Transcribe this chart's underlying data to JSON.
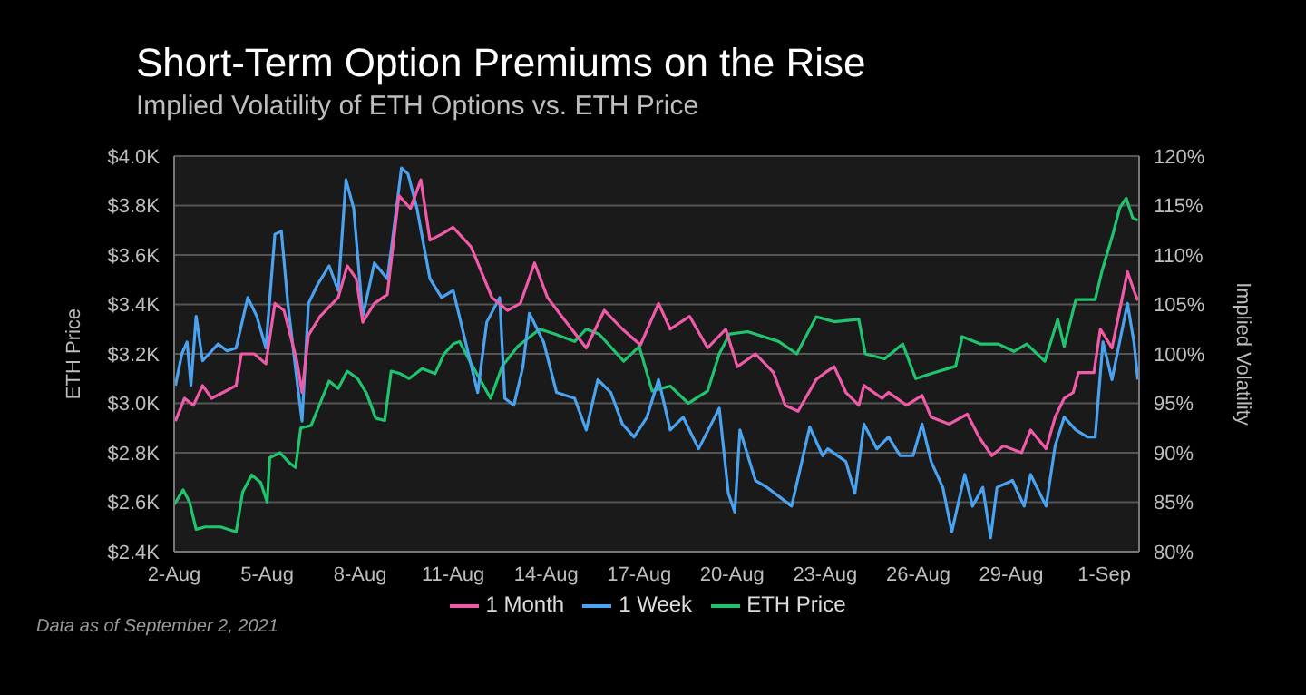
{
  "chart_data": {
    "type": "line",
    "title": "Short-Term Option Premiums on the Rise",
    "subtitle": "Implied Volatility of ETH Options vs. ETH Price",
    "ylabel": "ETH Price",
    "y2label": "Implied Volatility",
    "annotations": [
      "Data as of September 2, 2021"
    ],
    "xlim": [
      "2021-08-02",
      "2021-09-02T03:00"
    ],
    "xticks": [
      {
        "value": "2021-08-02",
        "label": "2-Aug"
      },
      {
        "value": "2021-08-05",
        "label": "5-Aug"
      },
      {
        "value": "2021-08-08",
        "label": "8-Aug"
      },
      {
        "value": "2021-08-11",
        "label": "11-Aug"
      },
      {
        "value": "2021-08-14",
        "label": "14-Aug"
      },
      {
        "value": "2021-08-17",
        "label": "17-Aug"
      },
      {
        "value": "2021-08-20",
        "label": "20-Aug"
      },
      {
        "value": "2021-08-23",
        "label": "23-Aug"
      },
      {
        "value": "2021-08-26",
        "label": "26-Aug"
      },
      {
        "value": "2021-08-29",
        "label": "29-Aug"
      },
      {
        "value": "2021-09-01",
        "label": "1-Sep"
      }
    ],
    "ylim": [
      2400,
      4000
    ],
    "yticks": [
      {
        "value": 2400,
        "label": "$2.4K"
      },
      {
        "value": 2600,
        "label": "$2.6K"
      },
      {
        "value": 2800,
        "label": "$2.8K"
      },
      {
        "value": 3000,
        "label": "$3.0K"
      },
      {
        "value": 3200,
        "label": "$3.2K"
      },
      {
        "value": 3400,
        "label": "$3.4K"
      },
      {
        "value": 3600,
        "label": "$3.6K"
      },
      {
        "value": 3800,
        "label": "$3.8K"
      },
      {
        "value": 4000,
        "label": "$4.0K"
      }
    ],
    "y2lim": [
      80,
      120
    ],
    "y2ticks": [
      {
        "value": 80,
        "label": "80%"
      },
      {
        "value": 85,
        "label": "85%"
      },
      {
        "value": 90,
        "label": "90%"
      },
      {
        "value": 95,
        "label": "95%"
      },
      {
        "value": 100,
        "label": "100%"
      },
      {
        "value": 105,
        "label": "105%"
      },
      {
        "value": 110,
        "label": "110%"
      },
      {
        "value": 115,
        "label": "115%"
      },
      {
        "value": 120,
        "label": "120%"
      }
    ],
    "grid": "y",
    "legend": "bottom",
    "marker": "none",
    "line_style": "solid",
    "series": [
      {
        "name": "ETH Price",
        "color": "#1fc46e",
        "x": [
          "2021-08-02T00:00",
          "2021-08-02T07:00",
          "2021-08-02T12:00",
          "2021-08-02T17:00",
          "2021-08-03T00:00",
          "2021-08-03T12:00",
          "2021-08-04T00:00",
          "2021-08-04T05:00",
          "2021-08-04T12:00",
          "2021-08-04T19:00",
          "2021-08-05T00:00",
          "2021-08-05T02:00",
          "2021-08-05T10:00",
          "2021-08-05T17:00",
          "2021-08-05T22:00",
          "2021-08-06T02:00",
          "2021-08-06T10:00",
          "2021-08-06T17:00",
          "2021-08-07T00:00",
          "2021-08-07T07:00",
          "2021-08-07T14:00",
          "2021-08-07T22:00",
          "2021-08-08T05:00",
          "2021-08-08T12:00",
          "2021-08-08T19:00",
          "2021-08-09T00:00",
          "2021-08-09T07:00",
          "2021-08-09T14:00",
          "2021-08-10T00:00",
          "2021-08-10T10:00",
          "2021-08-10T17:00",
          "2021-08-11T00:00",
          "2021-08-11T05:00",
          "2021-08-11T14:00",
          "2021-08-12T05:00",
          "2021-08-12T14:00",
          "2021-08-13T02:00",
          "2021-08-13T19:00",
          "2021-08-14T07:00",
          "2021-08-14T22:00",
          "2021-08-15T07:00",
          "2021-08-15T17:00",
          "2021-08-16T12:00",
          "2021-08-17T00:00",
          "2021-08-17T10:00",
          "2021-08-18T00:00",
          "2021-08-18T14:00",
          "2021-08-19T05:00",
          "2021-08-19T14:00",
          "2021-08-19T22:00",
          "2021-08-20T12:00",
          "2021-08-21T12:00",
          "2021-08-22T02:00",
          "2021-08-22T17:00",
          "2021-08-23T07:00",
          "2021-08-24T02:00",
          "2021-08-24T07:00",
          "2021-08-24T22:00",
          "2021-08-25T12:00",
          "2021-08-25T22:00",
          "2021-08-26T10:00",
          "2021-08-27T05:00",
          "2021-08-27T10:00",
          "2021-08-28T00:00",
          "2021-08-28T14:00",
          "2021-08-29T02:00",
          "2021-08-29T12:00",
          "2021-08-30T02:00",
          "2021-08-30T12:00",
          "2021-08-30T17:00",
          "2021-08-31T02:00",
          "2021-08-31T17:00",
          "2021-08-31T22:00",
          "2021-09-01T07:00",
          "2021-09-01T12:00",
          "2021-09-01T17:00",
          "2021-09-01T22:00",
          "2021-09-02T02:00"
        ],
        "values": [
          2590,
          2650,
          2600,
          2490,
          2500,
          2500,
          2480,
          2640,
          2710,
          2680,
          2600,
          2780,
          2800,
          2760,
          2740,
          2900,
          2910,
          3000,
          3090,
          3060,
          3130,
          3100,
          3040,
          2940,
          2930,
          3130,
          3120,
          3100,
          3140,
          3120,
          3200,
          3240,
          3250,
          3160,
          3020,
          3150,
          3230,
          3300,
          3280,
          3250,
          3300,
          3280,
          3170,
          3230,
          3050,
          3070,
          3000,
          3050,
          3200,
          3280,
          3290,
          3250,
          3200,
          3350,
          3330,
          3340,
          3200,
          3180,
          3240,
          3100,
          3120,
          3150,
          3270,
          3240,
          3240,
          3210,
          3240,
          3170,
          3340,
          3230,
          3420,
          3420,
          3530,
          3690,
          3790,
          3830,
          3750,
          3740
        ]
      },
      {
        "name": "1 Week",
        "color": "#4aa3f0",
        "axis": "y2",
        "x": [
          "2021-08-02T01:00",
          "2021-08-02T06:00",
          "2021-08-02T10:00",
          "2021-08-02T13:00",
          "2021-08-02T17:00",
          "2021-08-02T22:00",
          "2021-08-03T03:00",
          "2021-08-03T10:00",
          "2021-08-03T17:00",
          "2021-08-04T00:00",
          "2021-08-04T09:00",
          "2021-08-04T16:00",
          "2021-08-04T23:00",
          "2021-08-05T06:00",
          "2021-08-05T11:00",
          "2021-08-05T16:00",
          "2021-08-05T23:00",
          "2021-08-06T03:00",
          "2021-08-06T08:00",
          "2021-08-06T15:00",
          "2021-08-07T00:00",
          "2021-08-07T07:00",
          "2021-08-07T13:00",
          "2021-08-07T19:00",
          "2021-08-08T02:00",
          "2021-08-08T11:00",
          "2021-08-08T21:00",
          "2021-08-09T01:00",
          "2021-08-09T08:00",
          "2021-08-09T13:00",
          "2021-08-09T20:00",
          "2021-08-10T06:00",
          "2021-08-10T15:00",
          "2021-08-11T00:00",
          "2021-08-11T19:00",
          "2021-08-12T02:00",
          "2021-08-12T12:00",
          "2021-08-12T16:00",
          "2021-08-12T23:00",
          "2021-08-13T06:00",
          "2021-08-13T11:00",
          "2021-08-13T22:00",
          "2021-08-14T08:00",
          "2021-08-14T22:00",
          "2021-08-15T07:00",
          "2021-08-15T16:00",
          "2021-08-16T02:00",
          "2021-08-16T11:00",
          "2021-08-16T20:00",
          "2021-08-17T06:00",
          "2021-08-17T15:00",
          "2021-08-18T00:00",
          "2021-08-18T10:00",
          "2021-08-18T22:00",
          "2021-08-19T14:00",
          "2021-08-19T21:00",
          "2021-08-20T02:00",
          "2021-08-20T06:00",
          "2021-08-20T18:00",
          "2021-08-21T03:00",
          "2021-08-21T22:00",
          "2021-08-22T12:00",
          "2021-08-22T22:00",
          "2021-08-23T02:00",
          "2021-08-23T16:00",
          "2021-08-23T23:00",
          "2021-08-24T06:00",
          "2021-08-24T16:00",
          "2021-08-25T01:00",
          "2021-08-25T10:00",
          "2021-08-25T20:00",
          "2021-08-26T03:00",
          "2021-08-26T10:00",
          "2021-08-26T19:00",
          "2021-08-27T02:00",
          "2021-08-27T12:00",
          "2021-08-27T18:00",
          "2021-08-28T02:00",
          "2021-08-28T08:00",
          "2021-08-28T13:00",
          "2021-08-29T01:00",
          "2021-08-29T10:00",
          "2021-08-29T15:00",
          "2021-08-30T03:00",
          "2021-08-30T10:00",
          "2021-08-30T17:00",
          "2021-08-31T02:00",
          "2021-08-31T11:00",
          "2021-08-31T17:00",
          "2021-08-31T23:00",
          "2021-09-01T06:00",
          "2021-09-01T13:00",
          "2021-09-01T18:00",
          "2021-09-01T23:00",
          "2021-09-02T02:00"
        ],
        "values": [
          96.8,
          100,
          101.2,
          96.8,
          103.8,
          99.3,
          100,
          101,
          100.3,
          100.6,
          105.7,
          103.8,
          100.6,
          112.1,
          112.4,
          105.1,
          97.4,
          93.2,
          105.1,
          107,
          108.9,
          106.4,
          117.6,
          114.7,
          103.8,
          109.2,
          107.6,
          111.5,
          118.8,
          118.2,
          114.7,
          107.6,
          105.7,
          106.4,
          96.1,
          103.2,
          105.7,
          95.5,
          94.8,
          98.7,
          104.1,
          101.2,
          96.1,
          95.5,
          92.3,
          97.4,
          96.1,
          92.9,
          91.6,
          93.6,
          97.4,
          92.3,
          93.6,
          90.4,
          94.5,
          85.9,
          84,
          92.3,
          87.2,
          86.5,
          84.6,
          92.6,
          89.7,
          90.4,
          89.1,
          85.9,
          92.9,
          90.4,
          91.6,
          89.7,
          89.7,
          92.9,
          89.1,
          86.5,
          82,
          87.8,
          84.6,
          86.5,
          81.4,
          86.5,
          87.2,
          84.6,
          87.8,
          84.6,
          90.7,
          93.6,
          92.3,
          91.6,
          91.6,
          101.2,
          97.4,
          101.9,
          105.1,
          101.2,
          97.4
        ]
      },
      {
        "name": "1 Month",
        "color": "#f05aa8",
        "axis": "y2",
        "x": [
          "2021-08-02T01:00",
          "2021-08-02T08:00",
          "2021-08-02T15:00",
          "2021-08-02T22:00",
          "2021-08-03T05:00",
          "2021-08-03T14:00",
          "2021-08-04T00:00",
          "2021-08-04T04:00",
          "2021-08-04T14:00",
          "2021-08-04T23:00",
          "2021-08-05T06:00",
          "2021-08-05T13:00",
          "2021-08-05T23:00",
          "2021-08-06T03:00",
          "2021-08-06T08:00",
          "2021-08-06T17:00",
          "2021-08-07T07:00",
          "2021-08-07T14:00",
          "2021-08-07T21:00",
          "2021-08-08T02:00",
          "2021-08-08T11:00",
          "2021-08-08T21:00",
          "2021-08-09T06:00",
          "2021-08-09T15:00",
          "2021-08-09T23:00",
          "2021-08-10T06:00",
          "2021-08-10T15:00",
          "2021-08-11T00:00",
          "2021-08-11T14:00",
          "2021-08-12T06:00",
          "2021-08-12T18:00",
          "2021-08-13T04:00",
          "2021-08-13T15:00",
          "2021-08-14T01:00",
          "2021-08-14T12:00",
          "2021-08-15T07:00",
          "2021-08-15T21:00",
          "2021-08-16T11:00",
          "2021-08-17T01:00",
          "2021-08-17T15:00",
          "2021-08-18T00:00",
          "2021-08-18T15:00",
          "2021-08-19T05:00",
          "2021-08-19T19:00",
          "2021-08-20T04:00",
          "2021-08-20T18:00",
          "2021-08-21T08:00",
          "2021-08-21T17:00",
          "2021-08-22T03:00",
          "2021-08-22T17:00",
          "2021-08-23T00:00",
          "2021-08-23T07:00",
          "2021-08-23T16:00",
          "2021-08-24T02:00",
          "2021-08-24T06:00",
          "2021-08-24T20:00",
          "2021-08-25T01:00",
          "2021-08-25T15:00",
          "2021-08-26T03:00",
          "2021-08-26T10:00",
          "2021-08-27T00:00",
          "2021-08-27T14:00",
          "2021-08-27T23:00",
          "2021-08-28T09:00",
          "2021-08-28T18:00",
          "2021-08-29T08:00",
          "2021-08-29T15:00",
          "2021-08-30T03:00",
          "2021-08-30T10:00",
          "2021-08-30T17:00",
          "2021-08-31T00:00",
          "2021-08-31T04:00",
          "2021-08-31T16:00",
          "2021-08-31T21:00",
          "2021-09-01T06:00",
          "2021-09-01T11:00",
          "2021-09-01T18:00",
          "2021-09-01T23:00",
          "2021-09-02T02:00"
        ],
        "values": [
          93.2,
          95.5,
          94.8,
          96.8,
          95.5,
          96.1,
          96.8,
          100,
          100,
          99,
          105.1,
          104.4,
          99.3,
          96.1,
          101.9,
          103.8,
          105.7,
          108.9,
          107.6,
          103.2,
          105.1,
          106,
          116,
          114.7,
          117.6,
          111.5,
          112.1,
          112.8,
          110.8,
          105.7,
          104.4,
          105.1,
          109.2,
          105.7,
          103.8,
          100.6,
          104.4,
          102.5,
          100.9,
          105.1,
          102.5,
          103.8,
          100.6,
          102.5,
          98.7,
          100,
          98.1,
          94.8,
          94.2,
          97.4,
          98.1,
          98.7,
          96.1,
          94.8,
          96.8,
          95.5,
          96.1,
          94.8,
          95.8,
          93.6,
          92.9,
          93.9,
          91.6,
          89.7,
          90.7,
          90,
          92.3,
          90.4,
          93.6,
          95.5,
          96.1,
          98.1,
          98.1,
          102.5,
          100.6,
          103.8,
          108.3,
          106.4,
          105.4
        ]
      }
    ]
  }
}
